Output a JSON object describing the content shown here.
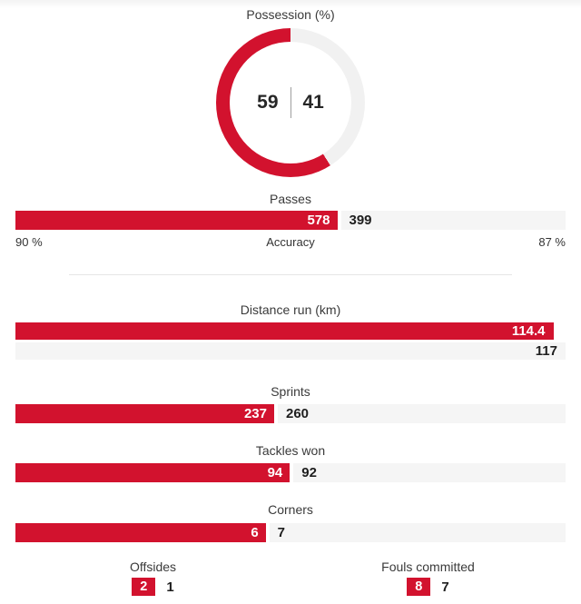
{
  "colors": {
    "accent": "#D2122E",
    "bar_track": "#F5F5F5",
    "ring_track": "#F1F1F1"
  },
  "chart_data": [
    {
      "type": "donut",
      "title": "Possession (%)",
      "home": 59,
      "away": 41,
      "start": "top",
      "direction": "home-counterclockwise"
    },
    {
      "type": "split-bar",
      "title": "Passes",
      "home": 578,
      "away": 399,
      "footer": {
        "left": "90 %",
        "center": "Accuracy",
        "right": "87 %"
      }
    },
    {
      "type": "stacked-bars",
      "title": "Distance run (km)",
      "home": 114.4,
      "away": 117
    },
    {
      "type": "split-bar",
      "title": "Sprints",
      "home": 237,
      "away": 260
    },
    {
      "type": "split-bar",
      "title": "Tackles won",
      "home": 94,
      "away": 92
    },
    {
      "type": "split-bar",
      "title": "Corners",
      "home": 6,
      "away": 7
    },
    {
      "type": "badge",
      "title": "Offsides",
      "home": 2,
      "away": 1
    },
    {
      "type": "badge",
      "title": "Fouls committed",
      "home": 8,
      "away": 7
    }
  ]
}
